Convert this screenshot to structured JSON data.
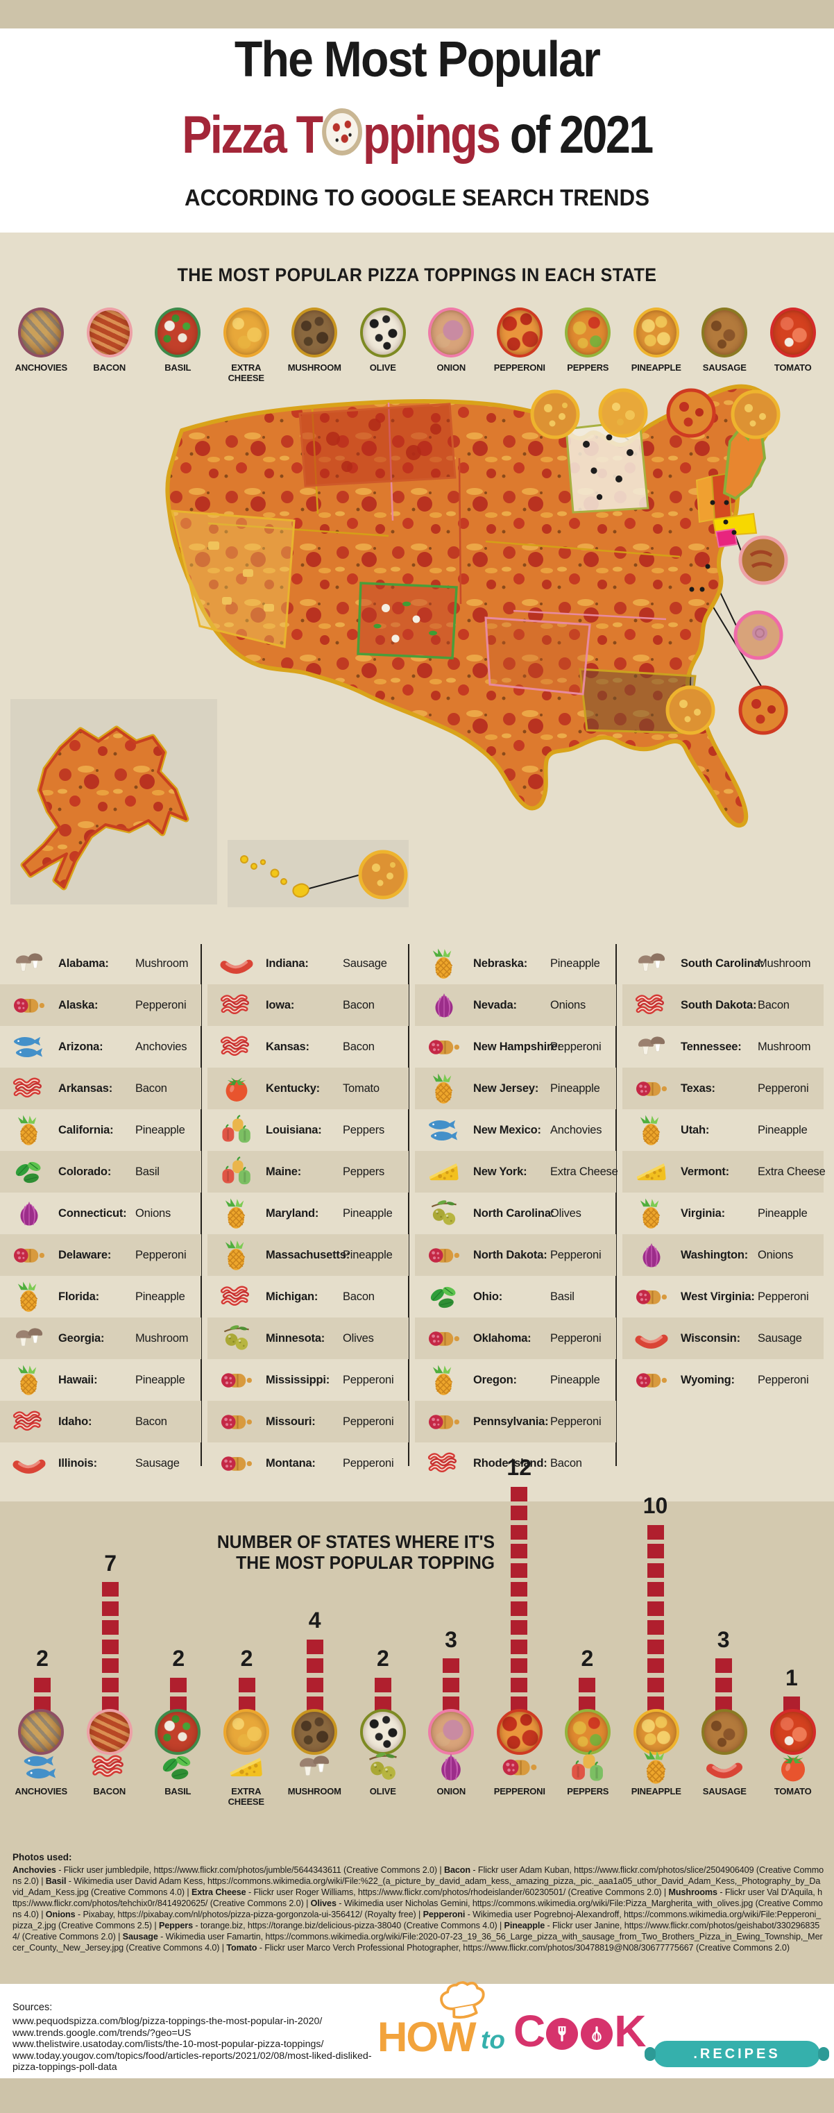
{
  "header": {
    "title_line1": "The Most Popular",
    "title_line2_red_a": "Pizza T",
    "title_line2_red_b": "ppings",
    "title_line2_black": " of 2021",
    "subtitle": "ACCORDING TO GOOGLE SEARCH TRENDS"
  },
  "map_section": {
    "heading": "THE MOST POPULAR PIZZA TOPPINGS IN EACH STATE"
  },
  "toppings": [
    {
      "label": "ANCHOVIES",
      "icon": "anchovies",
      "ring": "#8f4f63"
    },
    {
      "label": "BACON",
      "icon": "bacon",
      "ring": "#eda0a6"
    },
    {
      "label": "BASIL",
      "icon": "basil",
      "ring": "#3d8a4a"
    },
    {
      "label": "EXTRA CHEESE",
      "icon": "cheese",
      "ring": "#eda72e"
    },
    {
      "label": "MUSHROOM",
      "icon": "mushroom",
      "ring": "#c8951f"
    },
    {
      "label": "OLIVE",
      "icon": "olive",
      "ring": "#7d8a22"
    },
    {
      "label": "ONION",
      "icon": "onion",
      "ring": "#ef7ba8"
    },
    {
      "label": "PEPPERONI",
      "icon": "pepperoni",
      "ring": "#cf3a22"
    },
    {
      "label": "PEPPERS",
      "icon": "peppers",
      "ring": "#93b43c"
    },
    {
      "label": "PINEAPPLE",
      "icon": "pineapple",
      "ring": "#eeb42e"
    },
    {
      "label": "SAUSAGE",
      "icon": "sausage",
      "ring": "#8a7a22"
    },
    {
      "label": "TOMATO",
      "icon": "tomato",
      "ring": "#d42a2a"
    }
  ],
  "states": [
    {
      "name": "Alabama:",
      "topping": "Mushroom",
      "icon": "mushroom"
    },
    {
      "name": "Alaska:",
      "topping": "Pepperoni",
      "icon": "pepperoni"
    },
    {
      "name": "Arizona:",
      "topping": "Anchovies",
      "icon": "anchovies"
    },
    {
      "name": "Arkansas:",
      "topping": "Bacon",
      "icon": "bacon"
    },
    {
      "name": "California:",
      "topping": "Pineapple",
      "icon": "pineapple"
    },
    {
      "name": "Colorado:",
      "topping": "Basil",
      "icon": "basil"
    },
    {
      "name": "Connecticut:",
      "topping": "Onions",
      "icon": "onion"
    },
    {
      "name": "Delaware:",
      "topping": "Pepperoni",
      "icon": "pepperoni"
    },
    {
      "name": "Florida:",
      "topping": "Pineapple",
      "icon": "pineapple"
    },
    {
      "name": "Georgia:",
      "topping": "Mushroom",
      "icon": "mushroom"
    },
    {
      "name": "Hawaii:",
      "topping": "Pineapple",
      "icon": "pineapple"
    },
    {
      "name": "Idaho:",
      "topping": "Bacon",
      "icon": "bacon"
    },
    {
      "name": "Illinois:",
      "topping": "Sausage",
      "icon": "sausage"
    },
    {
      "name": "Indiana:",
      "topping": "Sausage",
      "icon": "sausage"
    },
    {
      "name": "Iowa:",
      "topping": "Bacon",
      "icon": "bacon"
    },
    {
      "name": "Kansas:",
      "topping": "Bacon",
      "icon": "bacon"
    },
    {
      "name": "Kentucky:",
      "topping": "Tomato",
      "icon": "tomato"
    },
    {
      "name": "Louisiana:",
      "topping": "Peppers",
      "icon": "peppers"
    },
    {
      "name": "Maine:",
      "topping": "Peppers",
      "icon": "peppers"
    },
    {
      "name": "Maryland:",
      "topping": "Pineapple",
      "icon": "pineapple"
    },
    {
      "name": "Massachusetts:",
      "topping": "Pineapple",
      "icon": "pineapple"
    },
    {
      "name": "Michigan:",
      "topping": "Bacon",
      "icon": "bacon"
    },
    {
      "name": "Minnesota:",
      "topping": "Olives",
      "icon": "olive"
    },
    {
      "name": "Mississippi:",
      "topping": "Pepperoni",
      "icon": "pepperoni"
    },
    {
      "name": "Missouri:",
      "topping": "Pepperoni",
      "icon": "pepperoni"
    },
    {
      "name": "Montana:",
      "topping": "Pepperoni",
      "icon": "pepperoni"
    },
    {
      "name": "Nebraska:",
      "topping": "Pineapple",
      "icon": "pineapple"
    },
    {
      "name": "Nevada:",
      "topping": "Onions",
      "icon": "onion"
    },
    {
      "name": "New Hampshire:",
      "topping": "Pepperoni",
      "icon": "pepperoni"
    },
    {
      "name": "New Jersey:",
      "topping": "Pineapple",
      "icon": "pineapple"
    },
    {
      "name": "New Mexico:",
      "topping": "Anchovies",
      "icon": "anchovies"
    },
    {
      "name": "New York:",
      "topping": "Extra Cheese",
      "icon": "cheese"
    },
    {
      "name": "North Carolina:",
      "topping": "Olives",
      "icon": "olive"
    },
    {
      "name": "North Dakota:",
      "topping": "Pepperoni",
      "icon": "pepperoni"
    },
    {
      "name": "Ohio:",
      "topping": "Basil",
      "icon": "basil"
    },
    {
      "name": "Oklahoma:",
      "topping": "Pepperoni",
      "icon": "pepperoni"
    },
    {
      "name": "Oregon:",
      "topping": "Pineapple",
      "icon": "pineapple"
    },
    {
      "name": "Pennsylvania:",
      "topping": "Pepperoni",
      "icon": "pepperoni"
    },
    {
      "name": "Rhode Island:",
      "topping": "Bacon",
      "icon": "bacon"
    },
    {
      "name": "South Carolina:",
      "topping": "Mushroom",
      "icon": "mushroom"
    },
    {
      "name": "South Dakota:",
      "topping": "Bacon",
      "icon": "bacon"
    },
    {
      "name": "Tennessee:",
      "topping": "Mushroom",
      "icon": "mushroom"
    },
    {
      "name": "Texas:",
      "topping": "Pepperoni",
      "icon": "pepperoni"
    },
    {
      "name": "Utah:",
      "topping": "Pineapple",
      "icon": "pineapple"
    },
    {
      "name": "Vermont:",
      "topping": "Extra Cheese",
      "icon": "cheese"
    },
    {
      "name": "Virginia:",
      "topping": "Pineapple",
      "icon": "pineapple"
    },
    {
      "name": "Washington:",
      "topping": "Onions",
      "icon": "onion"
    },
    {
      "name": "West Virginia:",
      "topping": "Pepperoni",
      "icon": "pepperoni"
    },
    {
      "name": "Wisconsin:",
      "topping": "Sausage",
      "icon": "sausage"
    },
    {
      "name": "Wyoming:",
      "topping": "Pepperoni",
      "icon": "pepperoni"
    }
  ],
  "chart_data": {
    "type": "bar",
    "title_line1": "NUMBER OF STATES WHERE IT'S",
    "title_line2": "THE MOST POPULAR TOPPING",
    "categories": [
      "ANCHOVIES",
      "BACON",
      "BASIL",
      "EXTRA CHEESE",
      "MUSHROOM",
      "OLIVE",
      "ONION",
      "PEPPERONI",
      "PEPPERS",
      "PINEAPPLE",
      "SAUSAGE",
      "TOMATO"
    ],
    "values": [
      2,
      7,
      2,
      2,
      4,
      2,
      3,
      12,
      2,
      10,
      3,
      1
    ],
    "ylim": [
      0,
      12
    ],
    "unit": "states",
    "bar_color": "#b01f2e",
    "legend": "none",
    "grid": "off"
  },
  "credits": {
    "heading": "Photos used:",
    "segments": [
      {
        "name": "Anchovies",
        "text": " - Flickr user jumbledpile, https://www.flickr.com/photos/jumble/5644343611 (Creative Commons 2.0) | "
      },
      {
        "name": "Bacon",
        "text": " - Flickr user Adam Kuban, https://www.flickr.com/photos/slice/2504906409 (Creative Commons 2.0) | "
      },
      {
        "name": "Basil",
        "text": " - Wikimedia user David Adam Kess, https://commons.wikimedia.org/wiki/File:%22_(a_picture_by_david_adam_kess,_amazing_pizza,_pic._aaa1a05_uthor_David_Adam_Kess,_Photography_by_David_Adam_Kess.jpg (Creative Commons 4.0) | "
      },
      {
        "name": "Extra Cheese",
        "text": " - Flickr user Roger Williams, https://www.flickr.com/photos/rhodeislander/60230501/ (Creative Commons 2.0) | "
      },
      {
        "name": "Mushrooms",
        "text": " - Flickr user Val D'Aquila, https://www.flickr.com/photos/tehchix0r/8414920625/ (Creative Commons 2.0) | "
      },
      {
        "name": "Olives",
        "text": " - Wikimedia user Nicholas Gemini, https://commons.wikimedia.org/wiki/File:Pizza_Margherita_with_olives.jpg (Creative Commons 4.0) | "
      },
      {
        "name": "Onions",
        "text": " - Pixabay, https://pixabay.com/nl/photos/pizza-pizza-gorgonzola-ui-356412/ (Royalty free) | "
      },
      {
        "name": "Pepperoni",
        "text": " - Wikimedia user Pogrebnoj-Alexandroff, https://commons.wikimedia.org/wiki/File:Pepperoni_pizza_2.jpg (Creative Commons 2.5) | "
      },
      {
        "name": "Peppers",
        "text": " - torange.biz, https://torange.biz/delicious-pizza-38040 (Creative Commons 4.0) | "
      },
      {
        "name": "Pineapple",
        "text": " - Flickr user Janine, https://www.flickr.com/photos/geishabot/3302968354/ (Creative Commons 2.0) | "
      },
      {
        "name": "Sausage",
        "text": " - Wikimedia user Famartin, https://commons.wikimedia.org/wiki/File:2020-07-23_19_36_56_Large_pizza_with_sausage_from_Two_Brothers_Pizza_in_Ewing_Township,_Mercer_County,_New_Jersey.jpg (Creative Commons 4.0) | "
      },
      {
        "name": "Tomato",
        "text": " - Flickr user Marco Verch Professional Photographer, https://www.flickr.com/photos/30478819@N08/30677775667 (Creative Commons 2.0)"
      }
    ]
  },
  "sources": {
    "heading": "Sources:",
    "lines": [
      "www.pequodspizza.com/blog/pizza-toppings-the-most-popular-in-2020/",
      "www.trends.google.com/trends/?geo=US",
      "www.thelistwire.usatoday.com/lists/the-10-most-popular-pizza-toppings/",
      "www.today.yougov.com/topics/food/articles-reports/2021/02/08/most-liked-disliked-pizza-toppings-poll-data"
    ]
  },
  "logo": {
    "word1": "HOW",
    "word2": "to",
    "word3_first": "C",
    "word3_last": "K",
    "badge": ".RECIPES"
  },
  "colors": {
    "title_red": "#a32638",
    "bar_red": "#b01f2e",
    "background_beige": "#e5decb",
    "band_tan": "#cdc3a9",
    "chart_band": "#d3c9af",
    "row_stripe": "#d9d0b9",
    "logo_orange": "#f2a33c",
    "logo_teal": "#35b0ac",
    "logo_pink": "#d6336c"
  }
}
